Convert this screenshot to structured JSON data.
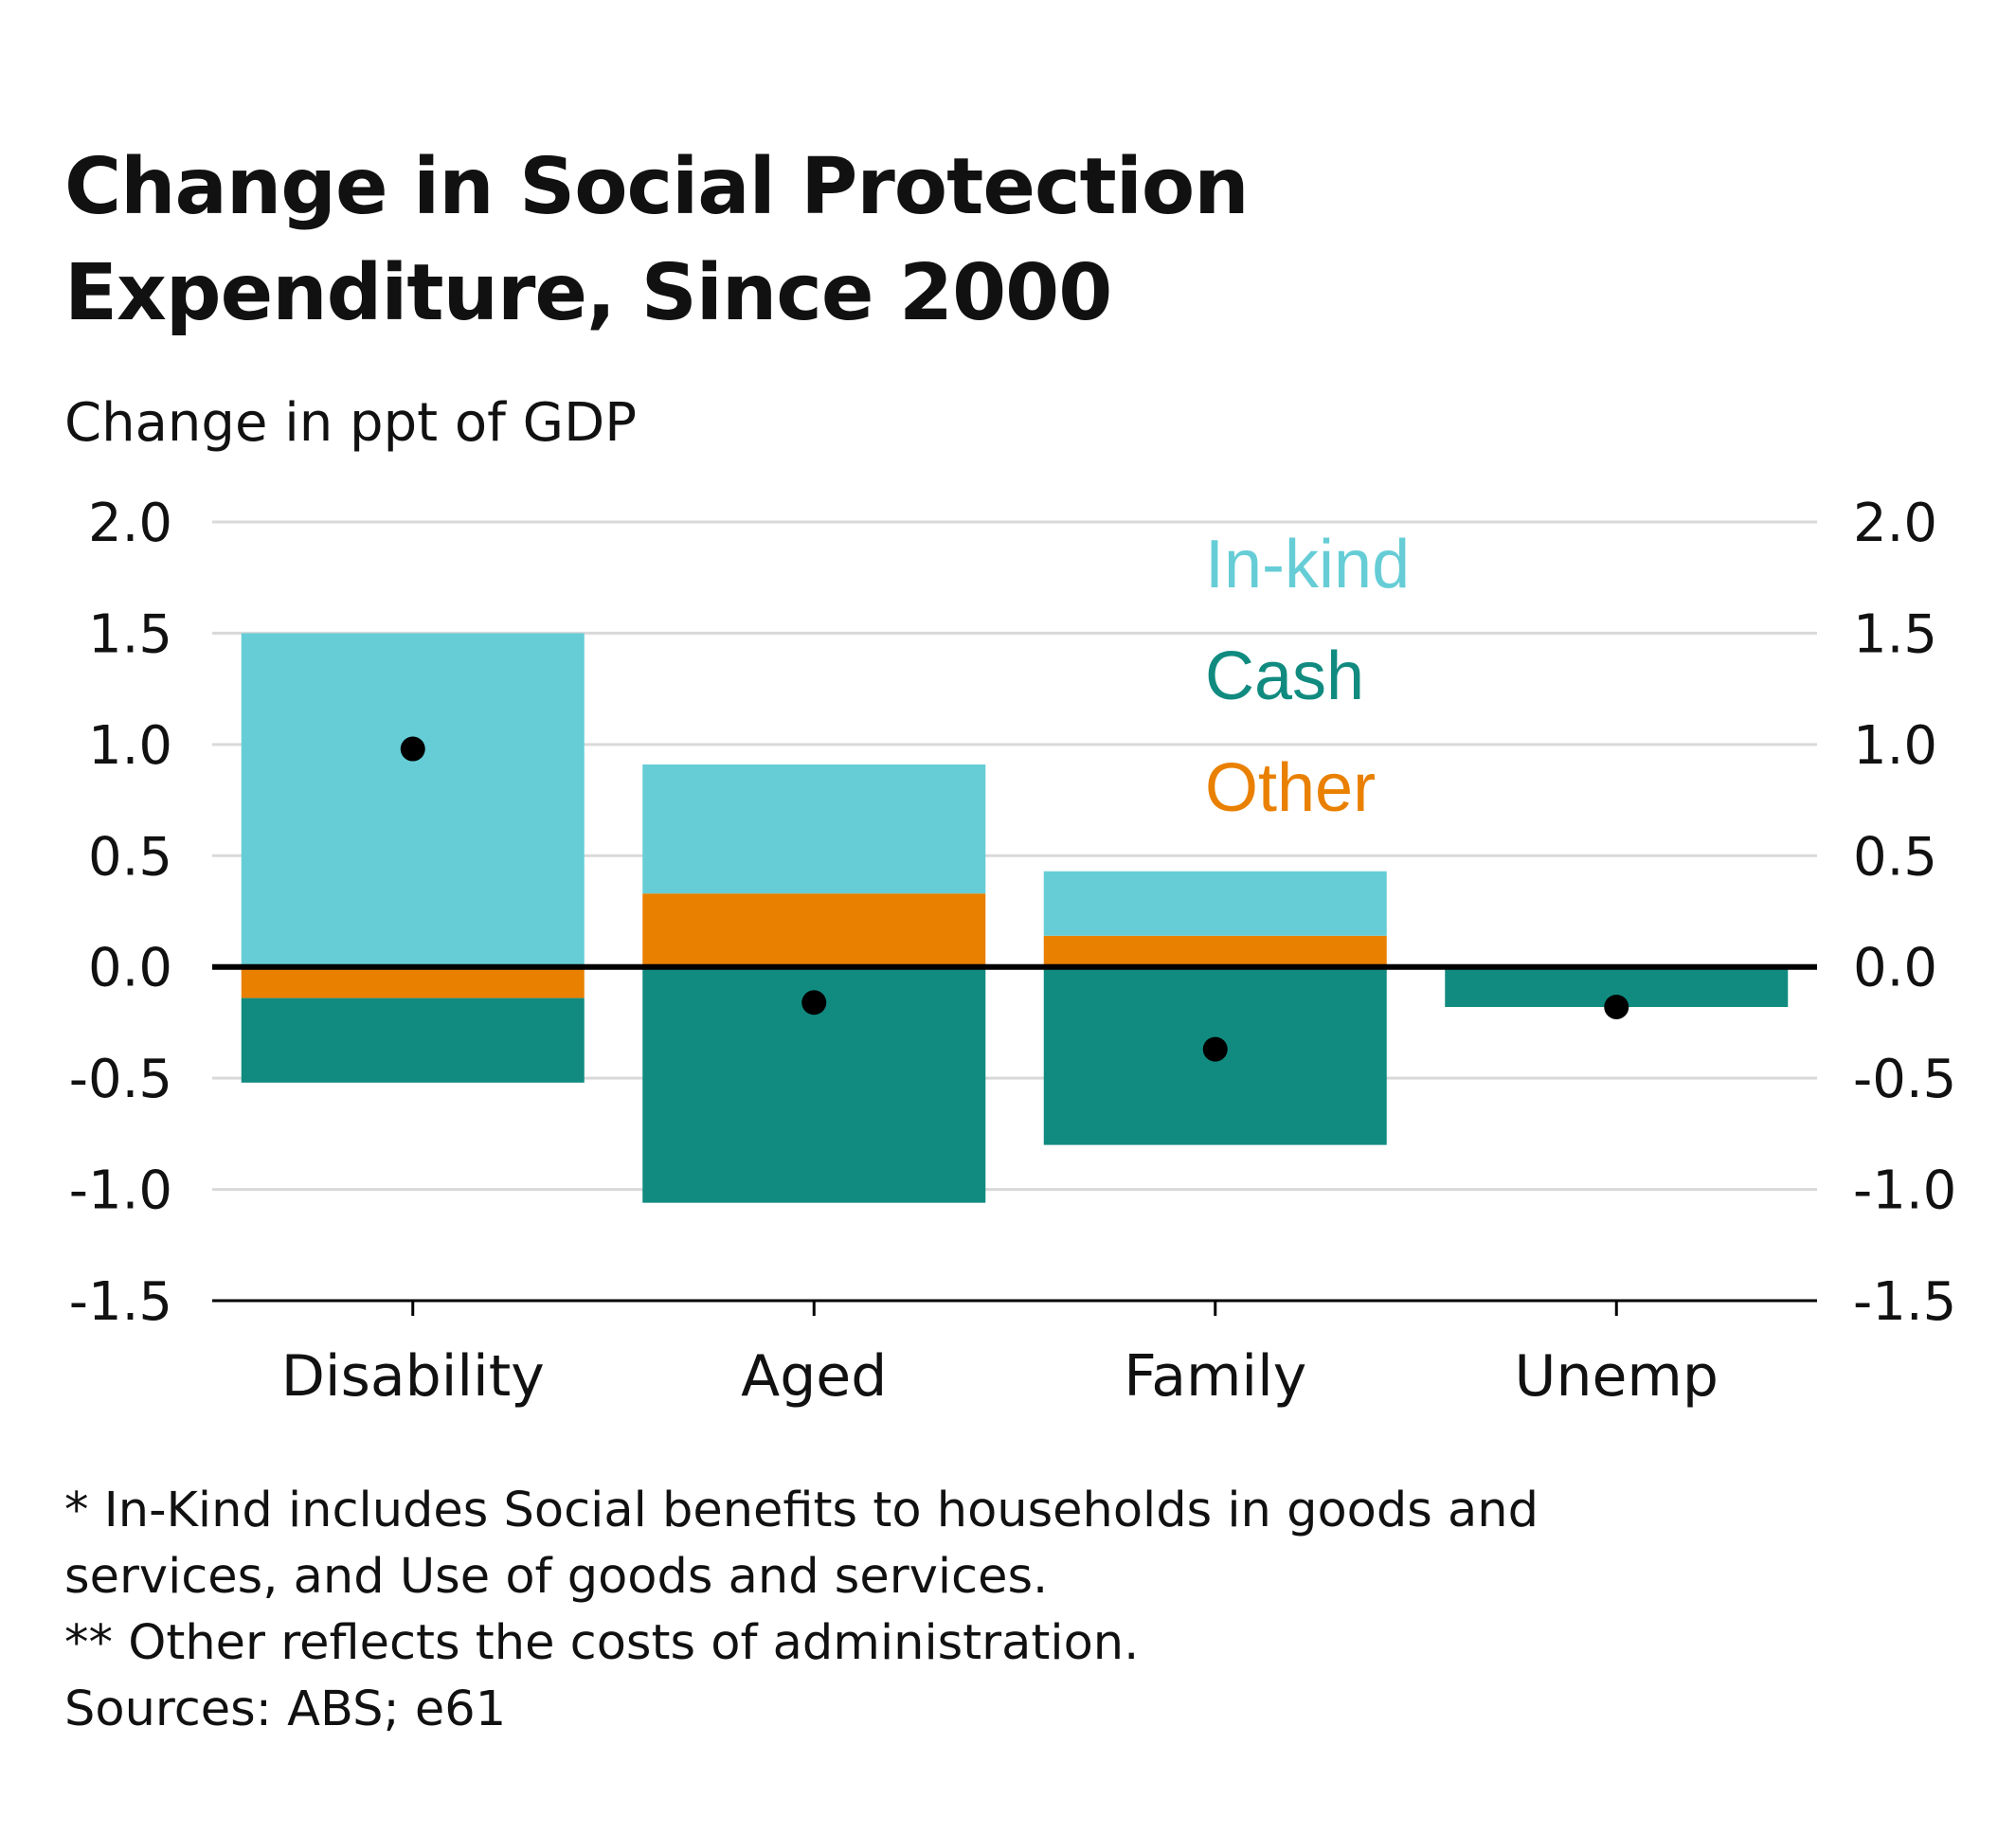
{
  "title_line1": "Change in Social Protection",
  "title_line2": "Expenditure, Since 2000",
  "subtitle": "Change in ppt of GDP",
  "chart_data": {
    "type": "bar",
    "stacked": true,
    "categories": [
      "Disability",
      "Aged",
      "Family",
      "Unemp"
    ],
    "series": [
      {
        "name": "In-kind",
        "color": "#66CDD6",
        "values": [
          1.5,
          0.58,
          0.29,
          0.0
        ]
      },
      {
        "name": "Cash",
        "color": "#118B80",
        "values": [
          -0.38,
          -1.06,
          -0.8,
          -0.18
        ]
      },
      {
        "name": "Other",
        "color": "#E98000",
        "values": [
          -0.14,
          0.33,
          0.14,
          0.0
        ]
      }
    ],
    "net_markers": [
      0.98,
      -0.16,
      -0.37,
      -0.18
    ],
    "ylim": [
      -1.5,
      2.0
    ],
    "yticks": [
      "2.0",
      "1.5",
      "1.0",
      "0.5",
      "0.0",
      "-0.5",
      "-1.0",
      "-1.5"
    ],
    "ytick_values": [
      2.0,
      1.5,
      1.0,
      0.5,
      0.0,
      -0.5,
      -1.0,
      -1.5
    ],
    "dual_y_axis": true,
    "grid": true,
    "legend_position": "top-right",
    "xlabel": "",
    "ylabel": "Change in ppt of GDP"
  },
  "footnotes": [
    "* In-Kind includes Social benefits to households in goods and",
    "services, and Use of goods and services.",
    "** Other reflects the costs of administration.",
    "Sources: ABS; e61"
  ]
}
